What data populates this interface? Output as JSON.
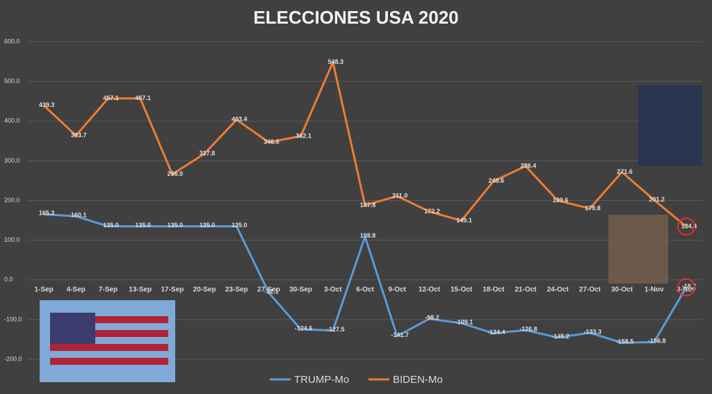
{
  "chart_data": {
    "type": "line",
    "title": "ELECCIONES USA 2020",
    "categories": [
      "1-Sep",
      "4-Sep",
      "7-Sep",
      "13-Sep",
      "17-Sep",
      "20-Sep",
      "23-Sep",
      "27-Sep",
      "30-Sep",
      "3-Oct",
      "6-Oct",
      "9-Oct",
      "12-Oct",
      "15-Oct",
      "18-Oct",
      "21-Oct",
      "24-Oct",
      "27-Oct",
      "30-Oct",
      "1-Nov",
      "3-Nov"
    ],
    "series": [
      {
        "name": "TRUMP-Mo",
        "color": "#5b9bd5",
        "values": [
          165.3,
          160.1,
          135,
          135,
          135,
          135,
          135,
          -32.1,
          -124.6,
          -127.5,
          108.8,
          -141.7,
          -98.2,
          -109.1,
          -134.4,
          -126.8,
          -145.2,
          -133.3,
          -158.5,
          -156.8,
          -18.7
        ],
        "value_labels": [
          "165.3",
          "160.1",
          "135.0",
          "135.0",
          "135.0",
          "135.0",
          "135.0",
          "-32.1",
          "-124.6",
          "-127.5",
          "108.8",
          "-141.7",
          "-98.2",
          "-109.1",
          "-134.4",
          "-126.8",
          "-145.2",
          "-133.3",
          "-158.5",
          "-156.8",
          "-18.7"
        ]
      },
      {
        "name": "BIDEN-Mo",
        "color": "#ed7d31",
        "values": [
          439.3,
          363.7,
          457.1,
          457.1,
          266,
          317.8,
          403.4,
          346.6,
          362.1,
          548.3,
          187.8,
          211,
          172.2,
          149.1,
          248.6,
          286.4,
          199.6,
          179.8,
          271.6,
          201.2,
          134.4
        ],
        "value_labels": [
          "439.3",
          "363.7",
          "457.1",
          "457.1",
          "266.0",
          "317.8",
          "403.4",
          "346.6",
          "362.1",
          "548.3",
          "187.8",
          "211.0",
          "172.2",
          "149.1",
          "248.6",
          "286.4",
          "199.6",
          "179.8",
          "271.6",
          "201.2",
          "134.4"
        ]
      }
    ],
    "ylim": [
      -200,
      600
    ],
    "yticks": [
      {
        "value": -200,
        "label": "-200.0"
      },
      {
        "value": -100,
        "label": "-100.0"
      },
      {
        "value": 0,
        "label": "0.0"
      },
      {
        "value": 100,
        "label": "100.0"
      },
      {
        "value": 200,
        "label": "200.0"
      },
      {
        "value": 300,
        "label": "300.0"
      },
      {
        "value": 400,
        "label": "400.0"
      },
      {
        "value": 500,
        "label": "500.0"
      },
      {
        "value": 600,
        "label": "600.0"
      }
    ],
    "grid": true,
    "legend": "bottom"
  }
}
